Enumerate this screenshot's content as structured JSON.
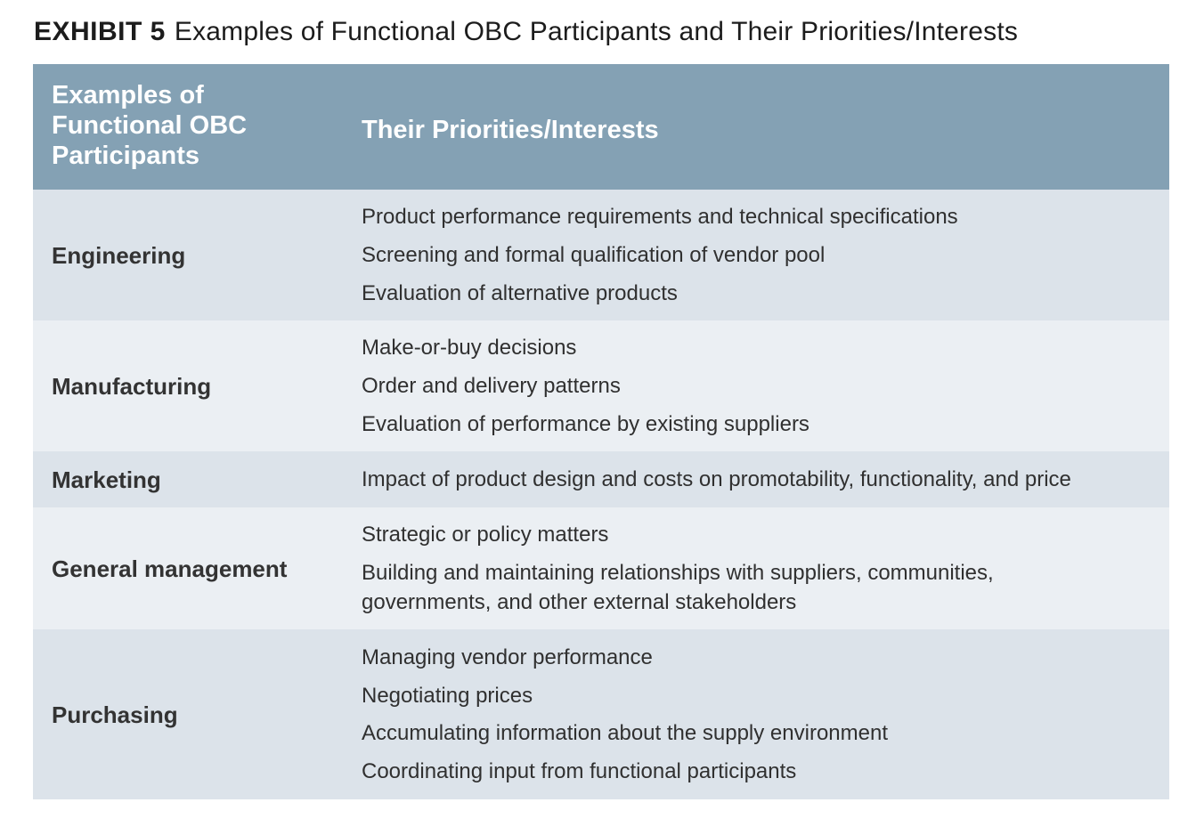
{
  "exhibit": {
    "label": "EXHIBIT 5",
    "title": "Examples of Functional OBC Participants and Their Priorities/Interests"
  },
  "table": {
    "headers": {
      "participants": "Examples of Functional OBC Participants",
      "priorities": "Their Priorities/Interests"
    },
    "rows": [
      {
        "participant": "Engineering",
        "priorities": [
          "Product performance requirements and technical specifications",
          "Screening and formal qualification of vendor pool",
          "Evaluation of alternative products"
        ]
      },
      {
        "participant": "Manufacturing",
        "priorities": [
          "Make-or-buy decisions",
          "Order and delivery patterns",
          "Evaluation of performance by existing suppliers"
        ]
      },
      {
        "participant": "Marketing",
        "priorities": [
          "Impact of product design and costs on promotability, functionality, and price"
        ]
      },
      {
        "participant": "General management",
        "priorities": [
          "Strategic or policy matters",
          "Building and maintaining relationships with suppliers, communities, governments, and other external stakeholders"
        ]
      },
      {
        "participant": "Purchasing",
        "priorities": [
          "Managing vendor performance",
          "Negotiating prices",
          "Accumulating information about the supply environment",
          "Coordinating input from functional participants"
        ]
      }
    ]
  },
  "colors": {
    "header_background": "#84a1b4",
    "row_shade_dark": "#dce3ea",
    "row_shade_light": "#ebeff3"
  }
}
